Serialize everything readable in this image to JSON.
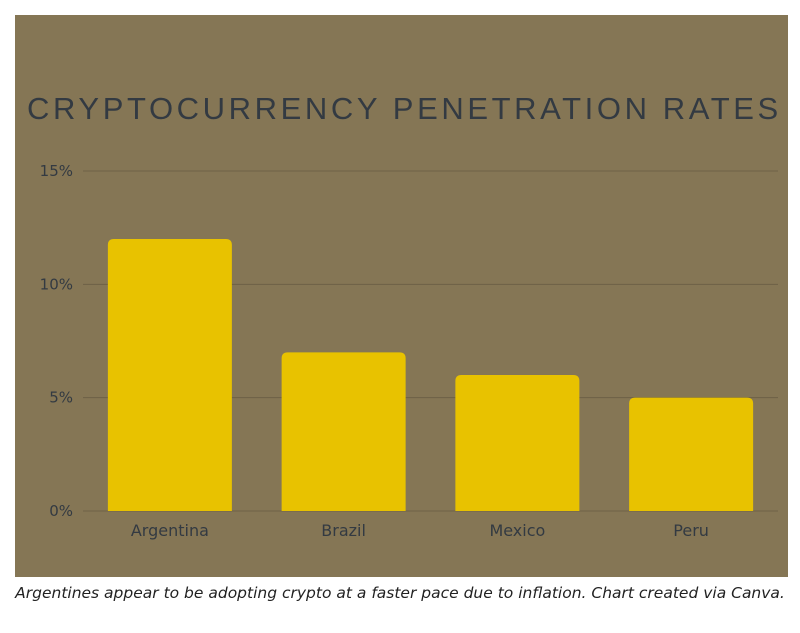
{
  "chart_data": {
    "type": "bar",
    "title": "CRYPTOCURRENCY PENETRATION RATES",
    "categories": [
      "Argentina",
      "Brazil",
      "Mexico",
      "Peru"
    ],
    "values": [
      12,
      7,
      6,
      5
    ],
    "yticks": [
      0,
      5,
      10,
      15
    ],
    "ytick_labels": [
      "0%",
      "5%",
      "10%",
      "15%"
    ],
    "ylim": [
      0,
      15
    ],
    "grid": true,
    "legend": "none",
    "colors": {
      "background": "#857655",
      "bar": "#e8c200",
      "grid": "#6e6147",
      "text": "#333a42"
    }
  },
  "caption": "Argentines appear to be adopting crypto at a faster pace due to inflation. Chart created via Canva."
}
